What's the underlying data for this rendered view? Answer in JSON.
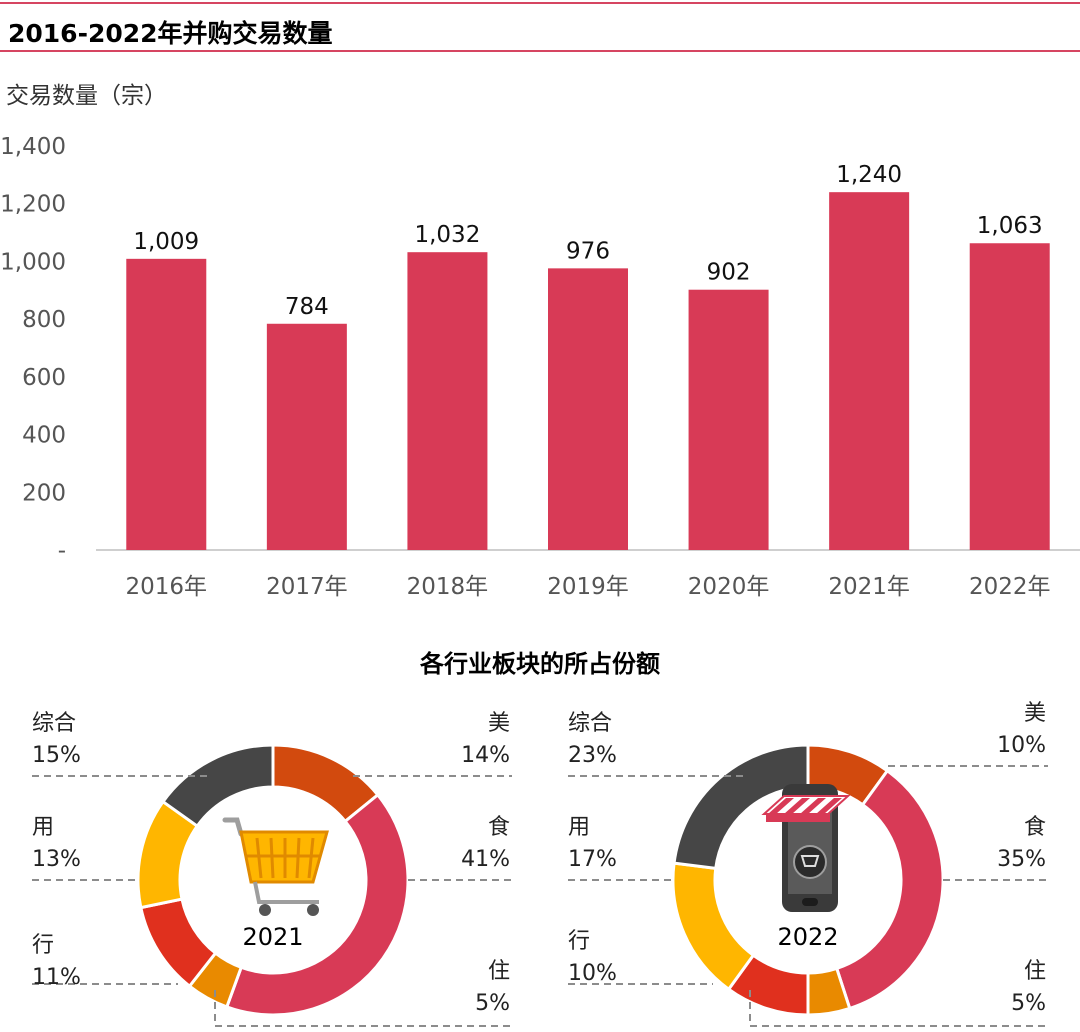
{
  "title": "2016-2022年并购交易数量",
  "chart_data": [
    {
      "type": "bar",
      "title": "2016-2022年并购交易数量",
      "ylabel": "交易数量（宗）",
      "xlabel": "",
      "categories": [
        "2016年",
        "2017年",
        "2018年",
        "2019年",
        "2020年",
        "2021年",
        "2022年"
      ],
      "values": [
        1009,
        784,
        1032,
        976,
        902,
        1240,
        1063
      ],
      "value_labels": [
        "1,009",
        "784",
        "1,032",
        "976",
        "902",
        "1,240",
        "1,063"
      ],
      "ylim": [
        0,
        1400
      ],
      "yticks": [
        0,
        200,
        400,
        600,
        800,
        1000,
        1200,
        1400
      ],
      "ytick_labels": [
        "-",
        "200",
        "400",
        "600",
        "800",
        "1,000",
        "1,200",
        "1,400"
      ],
      "grid": false,
      "colors": {
        "bar": "#d83a56"
      }
    },
    {
      "type": "pie",
      "title": "各行业板块的所占份额",
      "center_label": "2021",
      "slices": [
        {
          "name": "美",
          "value": 14,
          "label": "14%",
          "color": "#d24a0e"
        },
        {
          "name": "食",
          "value": 41,
          "label": "41%",
          "color": "#d83a56"
        },
        {
          "name": "住",
          "value": 5,
          "label": "5%",
          "color": "#e98a00"
        },
        {
          "name": "行",
          "value": 11,
          "label": "11%",
          "color": "#e0301e"
        },
        {
          "name": "用",
          "value": 13,
          "label": "13%",
          "color": "#ffb600"
        },
        {
          "name": "综合",
          "value": 15,
          "label": "15%",
          "color": "#464646"
        }
      ]
    },
    {
      "type": "pie",
      "title": "各行业板块的所占份额",
      "center_label": "2022",
      "slices": [
        {
          "name": "美",
          "value": 10,
          "label": "10%",
          "color": "#d24a0e"
        },
        {
          "name": "食",
          "value": 35,
          "label": "35%",
          "color": "#d83a56"
        },
        {
          "name": "住",
          "value": 5,
          "label": "5%",
          "color": "#e98a00"
        },
        {
          "name": "行",
          "value": 10,
          "label": "10%",
          "color": "#e0301e"
        },
        {
          "name": "用",
          "value": 17,
          "label": "17%",
          "color": "#ffb600"
        },
        {
          "name": "综合",
          "value": 23,
          "label": "23%",
          "color": "#464646"
        }
      ]
    }
  ],
  "icons": {
    "donut_2021": "shopping-basket-icon",
    "donut_2022": "mobile-shop-icon"
  }
}
